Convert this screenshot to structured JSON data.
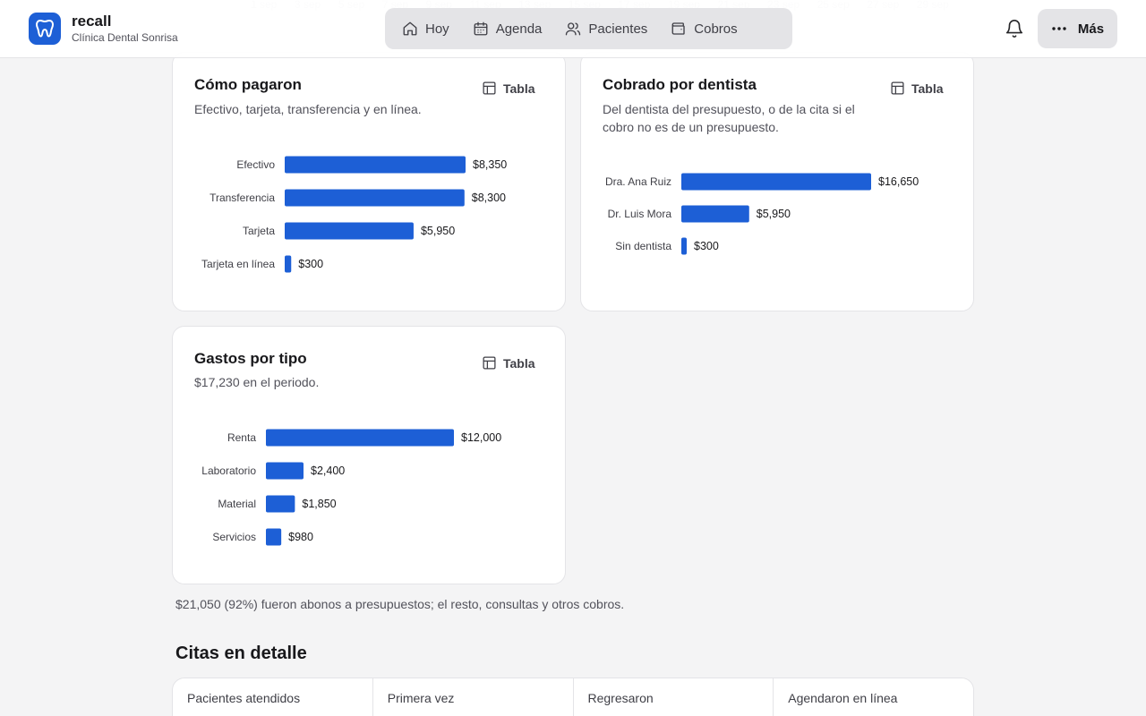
{
  "background_axis": {
    "labels": [
      "1 sep",
      "3 sep",
      "5 sep",
      "7 sep",
      "9 sep",
      "11 sep",
      "13 sep",
      "15 sep",
      "17 sep",
      "19 sep",
      "21 sep",
      "23 sep",
      "25 sep",
      "27 sep",
      "29 sep"
    ]
  },
  "header": {
    "app_name": "recall",
    "clinic_name": "Clínica Dental Sonrisa",
    "nav": [
      {
        "label": "Hoy",
        "icon": "home-icon"
      },
      {
        "label": "Agenda",
        "icon": "calendar-icon"
      },
      {
        "label": "Pacientes",
        "icon": "users-icon"
      },
      {
        "label": "Cobros",
        "icon": "wallet-icon"
      }
    ],
    "notifications_icon": "bell-icon",
    "more_label": "Más"
  },
  "colors": {
    "bar": "#1d5fd6",
    "brand": "#1d5fd6"
  },
  "cards": {
    "payment_methods": {
      "title": "Cómo pagaron",
      "description": "Efectivo, tarjeta, transferencia y en línea.",
      "table_label": "Tabla"
    },
    "by_dentist": {
      "title": "Cobrado por dentista",
      "description_line1": "Del dentista del presupuesto, o de la cita si el",
      "description_line2": "cobro no es de un presupuesto.",
      "table_label": "Tabla"
    },
    "expenses": {
      "title": "Gastos por tipo",
      "description": "$17,230 en el periodo.",
      "table_label": "Tabla"
    }
  },
  "chart_data": [
    {
      "type": "bar",
      "orientation": "horizontal",
      "categories": [
        "Efectivo",
        "Transferencia",
        "Tarjeta",
        "Tarjeta en línea"
      ],
      "values": [
        8350,
        8300,
        5950,
        300
      ],
      "value_labels": [
        "$8,350",
        "$8,300",
        "$5,950",
        "$300"
      ]
    },
    {
      "type": "bar",
      "orientation": "horizontal",
      "categories": [
        "Dra. Ana Ruiz",
        "Dr. Luis Mora",
        "Sin dentista"
      ],
      "values": [
        16650,
        5950,
        300
      ],
      "value_labels": [
        "$16,650",
        "$5,950",
        "$300"
      ]
    },
    {
      "type": "bar",
      "orientation": "horizontal",
      "categories": [
        "Renta",
        "Laboratorio",
        "Material",
        "Servicios"
      ],
      "values": [
        12000,
        2400,
        1850,
        980
      ],
      "value_labels": [
        "$12,000",
        "$2,400",
        "$1,850",
        "$980"
      ]
    }
  ],
  "note": "$21,050 (92%) fueron abonos a presupuestos; el resto, consultas y otros cobros.",
  "appointments": {
    "title": "Citas en detalle",
    "stats": [
      {
        "label": "Pacientes atendidos"
      },
      {
        "label": "Primera vez"
      },
      {
        "label": "Regresaron"
      },
      {
        "label": "Agendaron en línea"
      }
    ]
  }
}
